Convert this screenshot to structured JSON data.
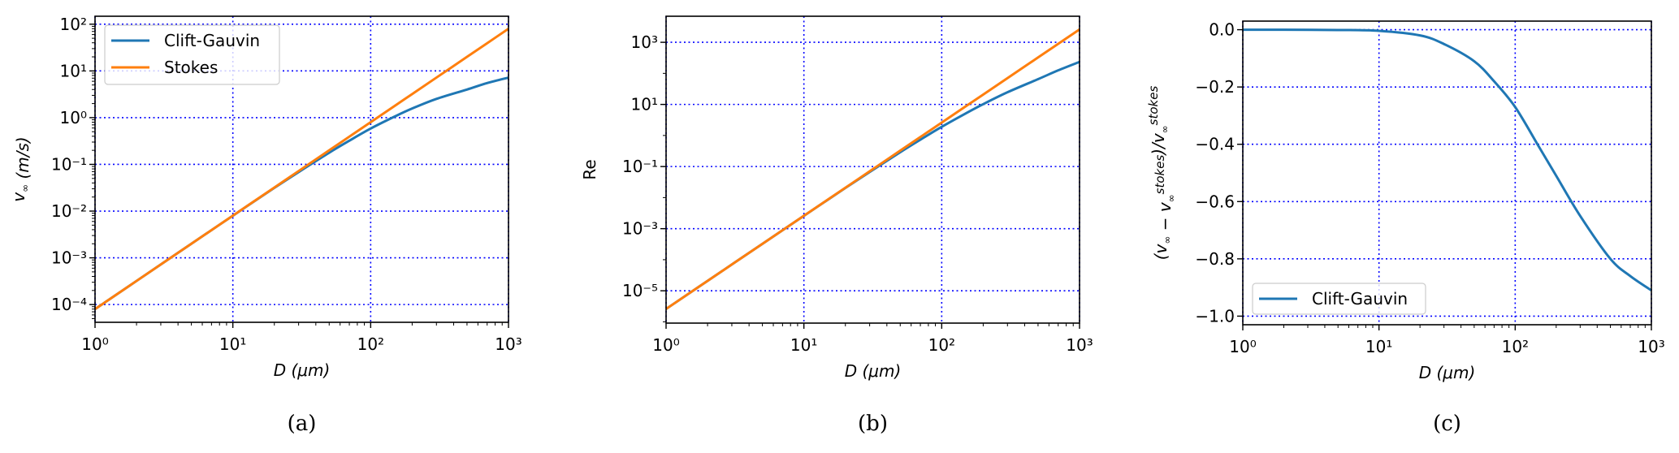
{
  "colors": {
    "clift": "#1f77b4",
    "stokes": "#ff7f0e",
    "grid": "#0000ff",
    "axis": "#000000"
  },
  "chart_data": [
    {
      "type": "line",
      "caption": "(a)",
      "xscale": "log",
      "yscale": "log",
      "xlim": [
        1,
        1000
      ],
      "ylim": [
        4.17e-05,
        148
      ],
      "xlabel": "D (μm)",
      "ylabel_parts": [
        {
          "t": "v"
        },
        {
          "t": "∞",
          "sub": true
        },
        {
          "t": " (m/s)"
        }
      ],
      "xticks": [
        {
          "v": 1,
          "label": "10⁰"
        },
        {
          "v": 10,
          "label": "10¹"
        },
        {
          "v": 100,
          "label": "10²"
        },
        {
          "v": 1000,
          "label": "10³"
        }
      ],
      "yticks": [
        {
          "v": 0.0001,
          "label": "10⁻⁴"
        },
        {
          "v": 0.001,
          "label": "10⁻³"
        },
        {
          "v": 0.01,
          "label": "10⁻²"
        },
        {
          "v": 0.1,
          "label": "10⁻¹"
        },
        {
          "v": 1,
          "label": "10⁰"
        },
        {
          "v": 10,
          "label": "10¹"
        },
        {
          "v": 100,
          "label": "10²"
        }
      ],
      "grid": true,
      "legend": "top-left",
      "x": [
        1,
        2,
        5,
        10,
        20,
        30,
        50,
        70,
        100,
        150,
        200,
        300,
        500,
        700,
        1000
      ],
      "series": [
        {
          "name": "Clift-Gauvin",
          "color_key": "clift",
          "values": [
            8e-05,
            0.00032,
            0.002,
            0.00797,
            0.0314,
            0.0684,
            0.178,
            0.321,
            0.584,
            1.062,
            1.568,
            2.52,
            4.0,
            5.49,
            7.2
          ]
        },
        {
          "name": "Stokes",
          "color_key": "stokes",
          "values": [
            8e-05,
            0.00032,
            0.002,
            0.008,
            0.032,
            0.072,
            0.2,
            0.392,
            0.8,
            1.8,
            3.2,
            7.2,
            20,
            39.2,
            80
          ]
        }
      ]
    },
    {
      "type": "line",
      "caption": "(b)",
      "xscale": "log",
      "yscale": "log",
      "xlim": [
        1,
        1000
      ],
      "ylim": [
        9.1e-07,
        6900
      ],
      "xlabel": "D (μm)",
      "ylabel_parts": [
        {
          "t": "Re"
        }
      ],
      "xticks": [
        {
          "v": 1,
          "label": "10⁰"
        },
        {
          "v": 10,
          "label": "10¹"
        },
        {
          "v": 100,
          "label": "10²"
        },
        {
          "v": 1000,
          "label": "10³"
        }
      ],
      "yticks": [
        {
          "v": 1e-05,
          "label": "10⁻⁵"
        },
        {
          "v": 0.001,
          "label": "10⁻³"
        },
        {
          "v": 0.1,
          "label": "10⁻¹"
        },
        {
          "v": 10,
          "label": "10¹"
        },
        {
          "v": 1000,
          "label": "10³"
        }
      ],
      "grid": true,
      "legend": "none",
      "x": [
        1,
        2,
        5,
        10,
        20,
        30,
        50,
        70,
        100,
        150,
        200,
        300,
        500,
        700,
        1000
      ],
      "series": [
        {
          "name": "Clift-Gauvin",
          "color_key": "clift",
          "values": [
            2.6e-06,
            2.08e-05,
            0.000325,
            0.00259,
            0.0204,
            0.0667,
            0.289,
            0.731,
            1.9,
            5.18,
            10.2,
            24.6,
            65,
            125,
            234
          ]
        },
        {
          "name": "Stokes",
          "color_key": "stokes",
          "values": [
            2.6e-06,
            2.08e-05,
            0.000325,
            0.0026,
            0.0208,
            0.0702,
            0.325,
            0.892,
            2.6,
            8.78,
            20.8,
            70.2,
            325,
            892,
            2600
          ]
        }
      ]
    },
    {
      "type": "line",
      "caption": "(c)",
      "xscale": "log",
      "yscale": "linear",
      "xlim": [
        1,
        1000
      ],
      "ylim": [
        -1.03,
        0.03
      ],
      "xlabel": "D (μm)",
      "ylabel_parts": [
        {
          "t": "(v"
        },
        {
          "t": "∞",
          "sub": true
        },
        {
          "t": " − v"
        },
        {
          "t": "∞",
          "sub": true
        },
        {
          "t": "stokes",
          "sup": true
        },
        {
          "t": ")/v"
        },
        {
          "t": "∞",
          "sub": true
        },
        {
          "t": "stokes",
          "sup": true
        }
      ],
      "xticks": [
        {
          "v": 1,
          "label": "10⁰"
        },
        {
          "v": 10,
          "label": "10¹"
        },
        {
          "v": 100,
          "label": "10²"
        },
        {
          "v": 1000,
          "label": "10³"
        }
      ],
      "yticks": [
        {
          "v": -1.0,
          "label": "−1.0"
        },
        {
          "v": -0.8,
          "label": "−0.8"
        },
        {
          "v": -0.6,
          "label": "−0.6"
        },
        {
          "v": -0.4,
          "label": "−0.4"
        },
        {
          "v": -0.2,
          "label": "−0.2"
        },
        {
          "v": 0.0,
          "label": "0.0"
        }
      ],
      "grid": true,
      "legend": "bottom-left",
      "x": [
        1,
        2,
        5,
        10,
        20,
        30,
        50,
        70,
        100,
        150,
        200,
        300,
        500,
        700,
        1000
      ],
      "series": [
        {
          "name": "Clift-Gauvin",
          "color_key": "clift",
          "values": [
            0,
            0,
            -0.001,
            -0.004,
            -0.02,
            -0.05,
            -0.11,
            -0.18,
            -0.27,
            -0.41,
            -0.51,
            -0.65,
            -0.8,
            -0.86,
            -0.91
          ]
        }
      ]
    }
  ]
}
